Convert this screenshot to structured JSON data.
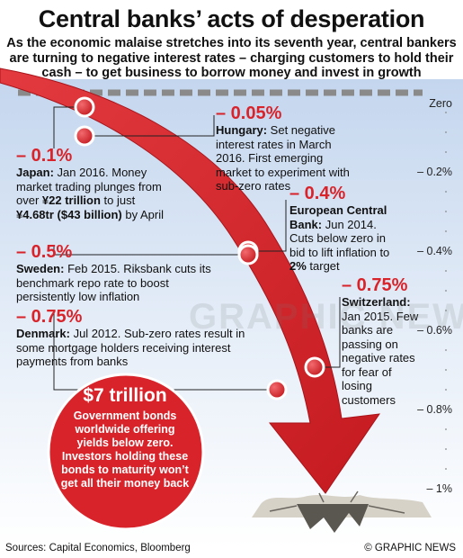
{
  "title": "Central banks’ acts of desperation",
  "subtitle": "As the economic malaise stretches into its seventh year, central bankers are turning to negative interest rates – charging customers to hold their cash – to get business to borrow money and invest in growth",
  "chart_data": {
    "type": "line",
    "ylabel": "",
    "y_ticks": [
      "Zero",
      "– 0.2%",
      "– 0.4%",
      "– 0.6%",
      "– 0.8%",
      "– 1%"
    ],
    "y_values": [
      0,
      -0.2,
      -0.4,
      -0.6,
      -0.8,
      -1.0
    ],
    "ylim": [
      -1.05,
      0.05
    ],
    "points": [
      {
        "country": "Japan",
        "value": -0.1
      },
      {
        "country": "Hungary",
        "value": -0.05
      },
      {
        "country": "European Central Bank",
        "value": -0.4
      },
      {
        "country": "Sweden",
        "value": -0.5
      },
      {
        "country": "Denmark",
        "value": -0.75
      },
      {
        "country": "Switzerland",
        "value": -0.75
      }
    ]
  },
  "events": {
    "hungary": {
      "value": "– 0.05%",
      "name": "Hungary:",
      "text": " Set negative interest rates in March 2016. First emerging market to experiment with sub-zero rates"
    },
    "japan": {
      "value": "– 0.1%",
      "name": "Japan:",
      "text_a": " Jan 2016. Money market trading plunges from over ",
      "bold_a": "¥22 trillion",
      "text_b": " to just ",
      "bold_b": "¥4.68tr ($43 billion)",
      "text_c": " by April"
    },
    "ecb": {
      "value": "– 0.4%",
      "name": "European Central Bank:",
      "text_a": " Jun 2014. Cuts below zero in bid to lift inflation to ",
      "bold_a": "2%",
      "text_b": " target"
    },
    "sweden": {
      "value": "– 0.5%",
      "name": "Sweden:",
      "text": " Feb 2015. Riksbank cuts its benchmark repo rate to boost persistently low inflation"
    },
    "denmark": {
      "value": "– 0.75%",
      "name": "Denmark:",
      "text": " Jul 2012. Sub-zero rates result in some mortgage holders receiving interest payments from banks"
    },
    "switzerland": {
      "value": "– 0.75%",
      "name": "Switzerland:",
      "text": " Jan 2015. Few banks are passing on negative rates for fear of losing customers"
    }
  },
  "callout": {
    "amount": "$7 trillion",
    "text": "Government bonds worldwide offering yields below zero. Investors holding these bonds to maturity won’t get all their money back"
  },
  "sources": "Sources: Capital Economics, Bloomberg",
  "credit": "© GRAPHIC NEWS",
  "watermark": "GRAPHIC NEWS",
  "colors": {
    "arrow": "#d8232a",
    "arrow_dark": "#a8141a",
    "sky_top": "#c9d9ee",
    "zero_line": "#8a8a8a"
  }
}
